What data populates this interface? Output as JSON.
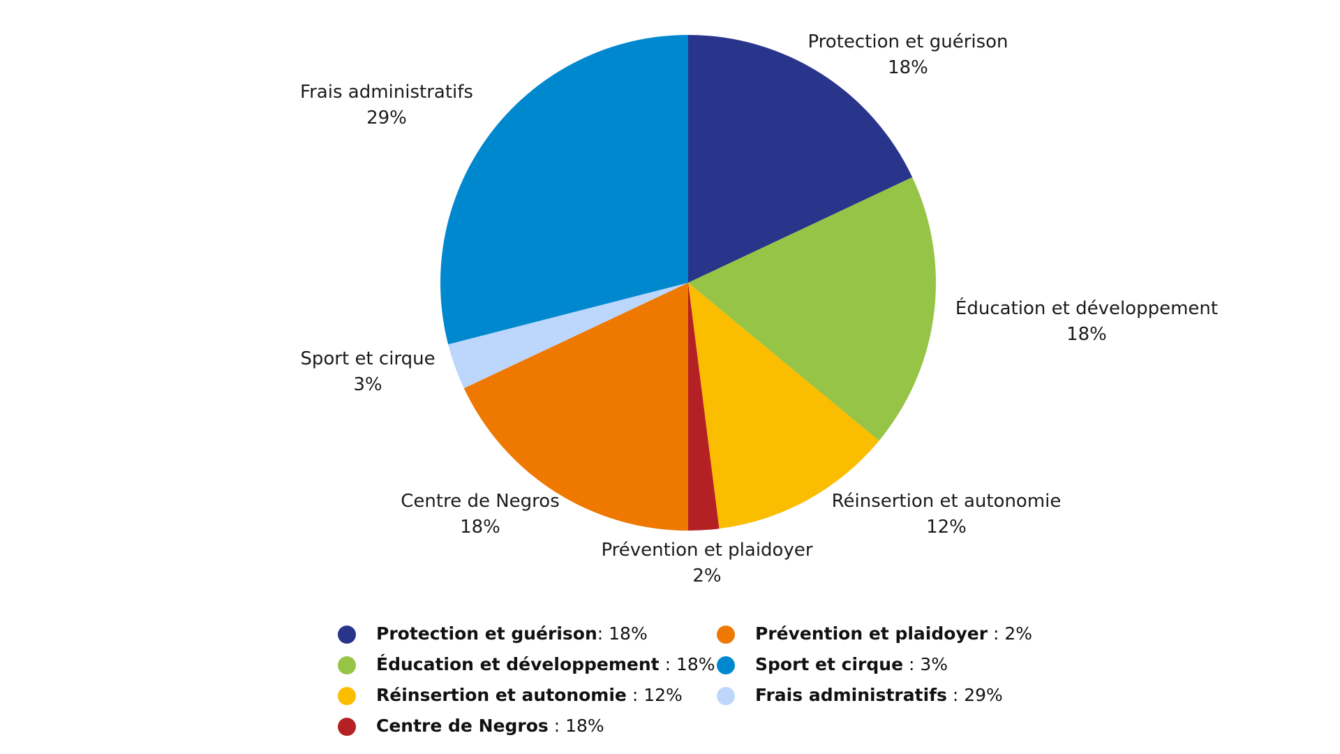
{
  "chart_data": {
    "type": "pie",
    "title": "",
    "slices": [
      {
        "name": "Protection et guérison",
        "value": 18,
        "label": "18%",
        "color": "#29348b",
        "legend_sep": ": "
      },
      {
        "name": "Éducation et développement",
        "value": 18,
        "label": "18%",
        "color": "#96c446",
        "legend_sep": " : "
      },
      {
        "name": "Réinsertion et autonomie",
        "value": 12,
        "label": "12%",
        "color": "#fabd00",
        "legend_sep": " : "
      },
      {
        "name": "Prévention et plaidoyer",
        "value": 2,
        "label": "2%",
        "color": "#b42124",
        "legend_sep": " : "
      },
      {
        "name": "Centre de Negros",
        "value": 18,
        "label": "18%",
        "color": "#ee7800",
        "legend_sep": " : "
      },
      {
        "name": "Sport et cirque",
        "value": 3,
        "label": "3%",
        "color": "#bdd6fb",
        "legend_sep": " : "
      },
      {
        "name": "Frais administratifs",
        "value": 29,
        "label": "29%",
        "color": "#0088cf",
        "legend_sep": " : "
      }
    ],
    "start_angle": "12 o'clock",
    "direction": "clockwise"
  },
  "legend": {
    "items": [
      {
        "name": "Protection et guérison",
        "sep": ": ",
        "value": "18%",
        "color": "#29348b"
      },
      {
        "name": "Éducation et développement",
        "sep": " : ",
        "value": "18%",
        "color": "#96c446"
      },
      {
        "name": "Réinsertion et autonomie",
        "sep": " : ",
        "value": "12%",
        "color": "#fabd00"
      },
      {
        "name": "Centre de Negros",
        "sep": " : ",
        "value": "18%",
        "color": "#b42124"
      },
      {
        "name": "Prévention et plaidoyer",
        "sep": " : ",
        "value": "2%",
        "color": "#ee7800"
      },
      {
        "name": "Sport et cirque",
        "sep": " : ",
        "value": "3%",
        "color": "#0088cf"
      },
      {
        "name": "Frais administratifs",
        "sep": " : ",
        "value": "29%",
        "color": "#bdd6fb"
      }
    ]
  }
}
